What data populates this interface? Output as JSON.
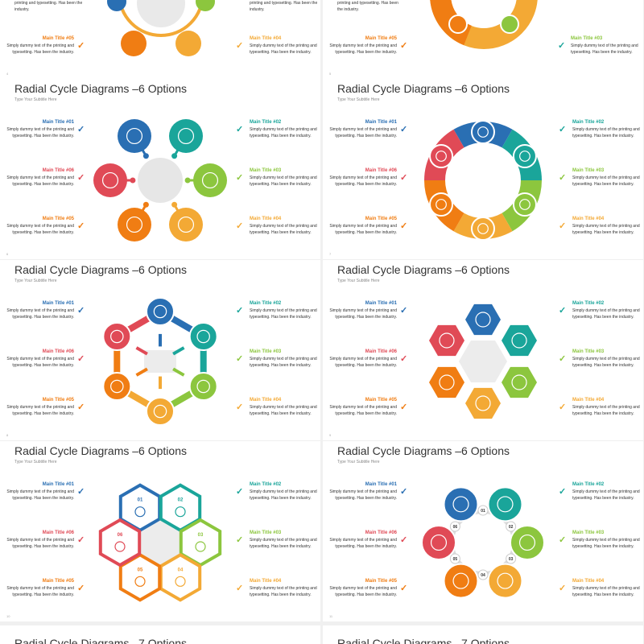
{
  "colors": {
    "c1": "#2a6fb3",
    "c2": "#1aa59a",
    "c3": "#8cc63e",
    "c4": "#f3a935",
    "c5": "#f07d13",
    "c6": "#e04a56"
  },
  "top_row": {
    "left": {
      "text_right": "printing and typesetting. Has been the industry.",
      "item": {
        "title": "Main Title #05",
        "body": "Simply dummy text of the printing and typesetting. Has been the industry."
      },
      "right_item": {
        "title": "Main Title #04",
        "body": "Simply dummy text of the printing and typesetting. Has been the industry."
      },
      "page": "4"
    },
    "right": {
      "left_text": "printing and typesetting. Has been the industry.",
      "item": {
        "title": "Main Title #05",
        "body": "Simply dummy text of the printing and typesetting. Has been the industry."
      },
      "right_item": {
        "title": "Main Title #03",
        "body": "Simply dummy text of the printing and typesetting. Has been the industry."
      },
      "page": "5"
    }
  },
  "slide_defaults": {
    "title": "Radial Cycle Diagrams –6 Options",
    "subtitle": "Type Your Subtitle Here",
    "items": [
      {
        "title": "Main Title #01",
        "body": "Simply dummy text of the printing and typesetting. Has been the industry."
      },
      {
        "title": "Main Title #02",
        "body": "Simply dummy text of the printing and typesetting. Has been the industry."
      },
      {
        "title": "Main Title #03",
        "body": "Simply dummy text of the printing and typesetting. Has been the industry."
      },
      {
        "title": "Main Title #04",
        "body": "Simply dummy text of the printing and typesetting. Has been the industry."
      },
      {
        "title": "Main Title #05",
        "body": "Simply dummy text of the printing and typesetting. Has been the industry."
      },
      {
        "title": "Main Title #06",
        "body": "Simply dummy text of the printing and typesetting. Has been the industry."
      }
    ]
  },
  "slides": [
    {
      "title": "Radial Cycle Diagrams –6 Options",
      "subtitle": "Type Your Subtitle Here",
      "page": "6",
      "type": "drops"
    },
    {
      "title": "Radial Cycle Diagrams –6 Options",
      "subtitle": "Type Your Subtitle Here",
      "page": "7",
      "type": "ring"
    },
    {
      "title": "Radial Cycle Diagrams –6 Options",
      "subtitle": "Type Your Subtitle Here",
      "page": "8",
      "type": "arrows"
    },
    {
      "title": "Radial Cycle Diagrams –6 Options",
      "subtitle": "Type Your Subtitle Here",
      "page": "9",
      "type": "hex-arrows"
    },
    {
      "title": "Radial Cycle Diagrams –6 Options",
      "subtitle": "Type Your Subtitle Here",
      "page": "10",
      "type": "hex-numbered"
    },
    {
      "title": "Radial Cycle Diagrams –6 Options",
      "subtitle": "Type Your Subtitle Here",
      "page": "11",
      "type": "circles-numbered"
    }
  ],
  "numbers": [
    "01",
    "02",
    "03",
    "04",
    "05",
    "06"
  ],
  "bottom_row": {
    "left_title": "Radial Cycle Diagrams –7 Options",
    "right_title": "Radial Cycle Diagrams –7 Options"
  }
}
